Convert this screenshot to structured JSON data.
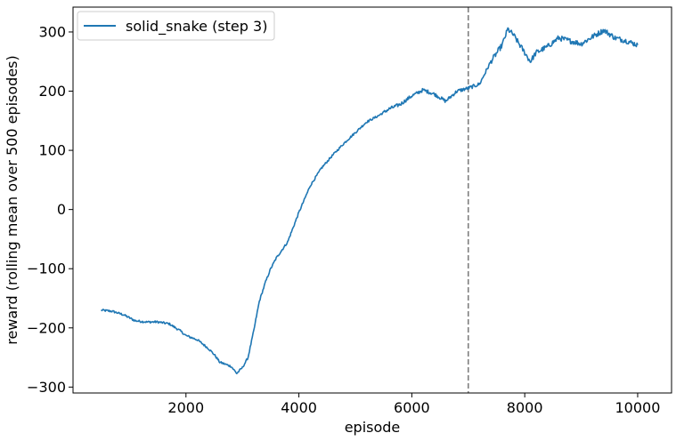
{
  "chart_data": {
    "type": "line",
    "title": "",
    "xlabel": "episode",
    "ylabel": "reward (rolling mean over 500 episodes)",
    "xlim": [
      0,
      10600
    ],
    "ylim": [
      -310,
      342
    ],
    "xticks": [
      2000,
      4000,
      6000,
      8000,
      10000
    ],
    "yticks": [
      -300,
      -200,
      -100,
      0,
      100,
      200,
      300
    ],
    "grid": false,
    "legend_position": "top-left",
    "vline": {
      "x": 7000,
      "style": "dashed",
      "color": "#808080"
    },
    "series": [
      {
        "name": "solid_snake (step 3)",
        "color": "#1f77b4",
        "x": [
          500,
          700,
          900,
          1100,
          1300,
          1500,
          1700,
          1900,
          2000,
          2200,
          2400,
          2500,
          2600,
          2800,
          2900,
          3000,
          3100,
          3200,
          3300,
          3400,
          3500,
          3600,
          3800,
          4000,
          4200,
          4400,
          4600,
          4800,
          5000,
          5200,
          5400,
          5600,
          5800,
          6000,
          6200,
          6400,
          6600,
          6800,
          7000,
          7200,
          7400,
          7600,
          7700,
          7800,
          8000,
          8100,
          8200,
          8400,
          8600,
          8800,
          9000,
          9200,
          9400,
          9600,
          9800,
          10000
        ],
        "y": [
          -170,
          -172,
          -178,
          -188,
          -190,
          -190,
          -193,
          -205,
          -213,
          -220,
          -235,
          -245,
          -258,
          -265,
          -277,
          -267,
          -250,
          -205,
          -155,
          -125,
          -100,
          -82,
          -55,
          -5,
          40,
          70,
          92,
          112,
          130,
          148,
          158,
          170,
          178,
          192,
          202,
          195,
          183,
          200,
          205,
          212,
          250,
          278,
          305,
          295,
          265,
          250,
          265,
          275,
          290,
          285,
          280,
          292,
          303,
          290,
          285,
          278
        ]
      }
    ]
  }
}
